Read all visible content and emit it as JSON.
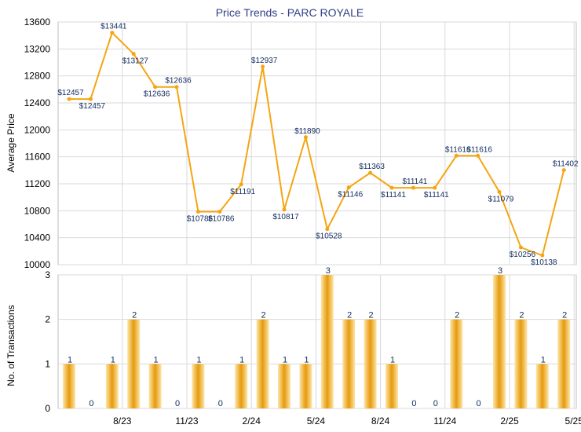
{
  "title": "Price Trends - PARC ROYALE",
  "colors": {
    "line": "#f5a512",
    "bar_light": "#fde6a8",
    "bar_dark": "#e69a0c",
    "grid": "#d9d9d9",
    "title": "#2f3e86",
    "label": "#102a5e"
  },
  "chart_data": [
    {
      "type": "line",
      "ylabel": "Average Price",
      "ylim": [
        10000,
        13600
      ],
      "yticks": [
        10000,
        10400,
        10800,
        11200,
        11600,
        12000,
        12400,
        12800,
        13200,
        13600
      ],
      "xticks": [
        "8/23",
        "11/23",
        "2/24",
        "5/24",
        "8/24",
        "11/24",
        "2/25",
        "5/25"
      ],
      "grid": true,
      "points": [
        {
          "x": "6/23",
          "y": 12457,
          "label": "$12457"
        },
        {
          "x": "7/23",
          "y": 12457,
          "label": "$12457"
        },
        {
          "x": "8/23",
          "y": 13441,
          "label": "$13441"
        },
        {
          "x": "9/23",
          "y": 13127,
          "label": "$13127"
        },
        {
          "x": "10/23",
          "y": 12636,
          "label": "$12636"
        },
        {
          "x": "11/23",
          "y": 12636,
          "label": "$12636"
        },
        {
          "x": "12/23",
          "y": 10786,
          "label": "$10786"
        },
        {
          "x": "1/24",
          "y": 10786,
          "label": "$10786"
        },
        {
          "x": "2/24",
          "y": 11191,
          "label": "$11191"
        },
        {
          "x": "3/24",
          "y": 12937,
          "label": "$12937"
        },
        {
          "x": "4/24",
          "y": 10817,
          "label": "$10817"
        },
        {
          "x": "5/24",
          "y": 11890,
          "label": "$11890"
        },
        {
          "x": "6/24",
          "y": 10528,
          "label": "$10528"
        },
        {
          "x": "7/24",
          "y": 11146,
          "label": "$11146"
        },
        {
          "x": "8/24",
          "y": 11363,
          "label": "$11363"
        },
        {
          "x": "9/24",
          "y": 11141,
          "label": "$11141"
        },
        {
          "x": "10/24",
          "y": 11141,
          "label": "$11141"
        },
        {
          "x": "11/24",
          "y": 11141,
          "label": "$11141"
        },
        {
          "x": "12/24",
          "y": 11616,
          "label": "$11616"
        },
        {
          "x": "1/25",
          "y": 11616,
          "label": "$11616"
        },
        {
          "x": "2/25",
          "y": 11079,
          "label": "$11079"
        },
        {
          "x": "3/25",
          "y": 10256,
          "label": "$10256"
        },
        {
          "x": "4/25",
          "y": 10138,
          "label": "$10138"
        },
        {
          "x": "5/25",
          "y": 11402,
          "label": "$11402"
        }
      ]
    },
    {
      "type": "bar",
      "ylabel": "No. of Transactions",
      "ylim": [
        0,
        3
      ],
      "yticks": [
        0,
        1,
        2,
        3
      ],
      "xticks": [
        "8/23",
        "11/23",
        "2/24",
        "5/24",
        "8/24",
        "11/24",
        "2/25",
        "5/25"
      ],
      "grid": true,
      "categories": [
        "6/23",
        "7/23",
        "8/23",
        "9/23",
        "10/23",
        "11/23",
        "12/23",
        "1/24",
        "2/24",
        "3/24",
        "4/24",
        "5/24",
        "6/24",
        "7/24",
        "8/24",
        "9/24",
        "10/24",
        "11/24",
        "12/24",
        "1/25",
        "2/25",
        "3/25",
        "4/25",
        "5/25"
      ],
      "values": [
        1,
        0,
        1,
        2,
        1,
        0,
        1,
        0,
        1,
        2,
        1,
        1,
        3,
        2,
        2,
        1,
        0,
        0,
        2,
        0,
        3,
        2,
        1,
        2
      ]
    }
  ]
}
